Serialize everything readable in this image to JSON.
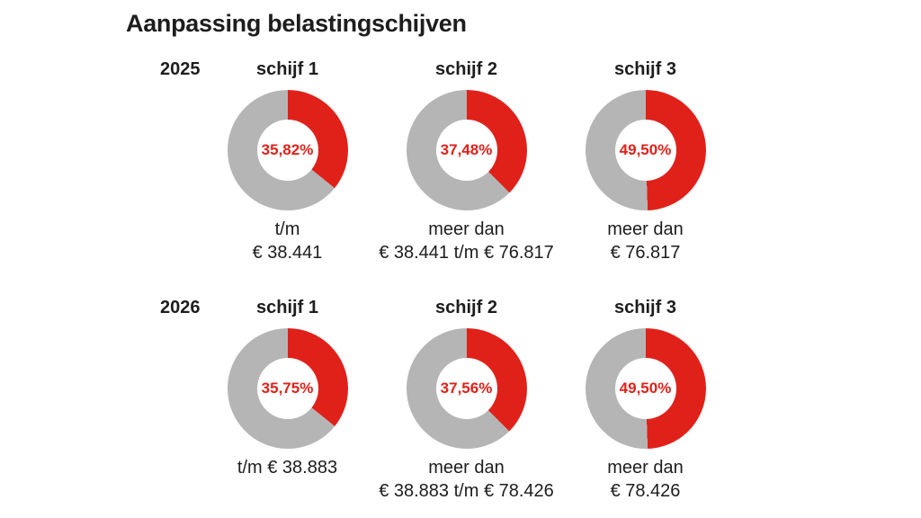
{
  "title": "Aanpassing belastingschijven",
  "chart_data": {
    "type": "pie",
    "subtype": "donut-grid",
    "unit": "%",
    "value_range": [
      0,
      100
    ],
    "colors": {
      "fill": "#e0211a",
      "rest": "#b5b5b5",
      "hole": "#ffffff",
      "text": "#1d1d1d",
      "pct_text": "#e0211a"
    },
    "rows": [
      {
        "year": "2025",
        "donuts": [
          {
            "label": "schijf 1",
            "value": 35.82,
            "value_label": "35,82%",
            "range_line1": "t/m",
            "range_line2": "€ 38.441"
          },
          {
            "label": "schijf 2",
            "value": 37.48,
            "value_label": "37,48%",
            "range_line1": "meer dan",
            "range_line2": "€ 38.441 t/m € 76.817"
          },
          {
            "label": "schijf 3",
            "value": 49.5,
            "value_label": "49,50%",
            "range_line1": "meer dan",
            "range_line2": "€ 76.817"
          }
        ]
      },
      {
        "year": "2026",
        "donuts": [
          {
            "label": "schijf 1",
            "value": 35.75,
            "value_label": "35,75%",
            "range_line1": "t/m € 38.883",
            "range_line2": ""
          },
          {
            "label": "schijf 2",
            "value": 37.56,
            "value_label": "37,56%",
            "range_line1": "meer dan",
            "range_line2": "€ 38.883 t/m € 78.426"
          },
          {
            "label": "schijf 3",
            "value": 49.5,
            "value_label": "49,50%",
            "range_line1": "meer dan",
            "range_line2": "€ 78.426"
          }
        ]
      }
    ]
  }
}
